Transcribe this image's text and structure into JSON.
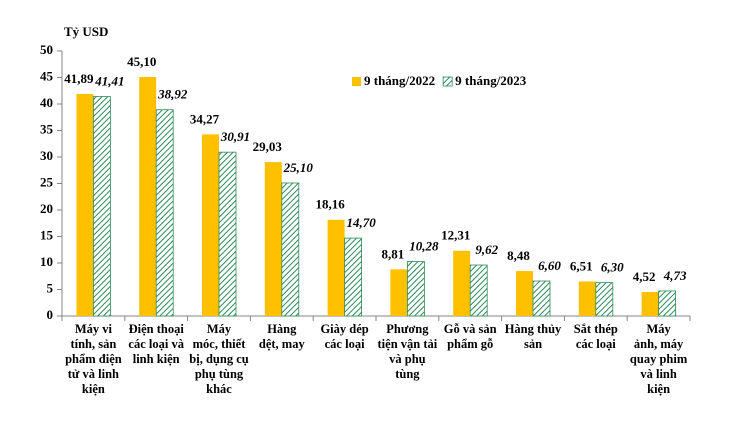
{
  "chart_data": {
    "type": "bar",
    "y_label": "Tỷ USD",
    "categories": [
      "Máy vi\ntính, sản\nphẩm điện\ntử và linh\nkiện",
      "Điện thoại\ncác loại và\nlinh kiện",
      "Máy\nmóc, thiết\nbị, dụng cụ\nphụ tùng\nkhác",
      "Hàng\ndệt, may",
      "Giày dép\ncác loại",
      "Phương\ntiện vận tải\nvà phụ\ntùng",
      "Gỗ và sản\nphẩm gỗ",
      "Hàng thủy\nsản",
      "Sắt thép\ncác loại",
      "Máy\nảnh, máy\nquay phim\nvà linh\nkiện"
    ],
    "series": [
      {
        "name": "9 tháng/2022",
        "color": "#ffc000",
        "values": [
          41.89,
          45.1,
          34.27,
          29.03,
          18.16,
          8.81,
          12.31,
          8.48,
          6.51,
          4.52
        ],
        "value_labels": [
          "41,89",
          "45,10",
          "34,27",
          "29,03",
          "18,16",
          "8,81",
          "12,31",
          "8,48",
          "6,51",
          "4,52"
        ]
      },
      {
        "name": "9 tháng/2023",
        "color": "#2e8b57",
        "hatched": true,
        "values": [
          41.41,
          38.92,
          30.91,
          25.1,
          14.7,
          10.28,
          9.62,
          6.6,
          6.3,
          4.73
        ],
        "value_labels": [
          "41,41",
          "38,92",
          "30,91",
          "25,10",
          "14,70",
          "10,28",
          "9,62",
          "6,60",
          "6,30",
          "4,73"
        ]
      }
    ],
    "ylim": [
      0,
      50
    ],
    "yticks": [
      0,
      5,
      10,
      15,
      20,
      25,
      30,
      35,
      40,
      45,
      50
    ],
    "grid": false,
    "legend": "top-right"
  }
}
